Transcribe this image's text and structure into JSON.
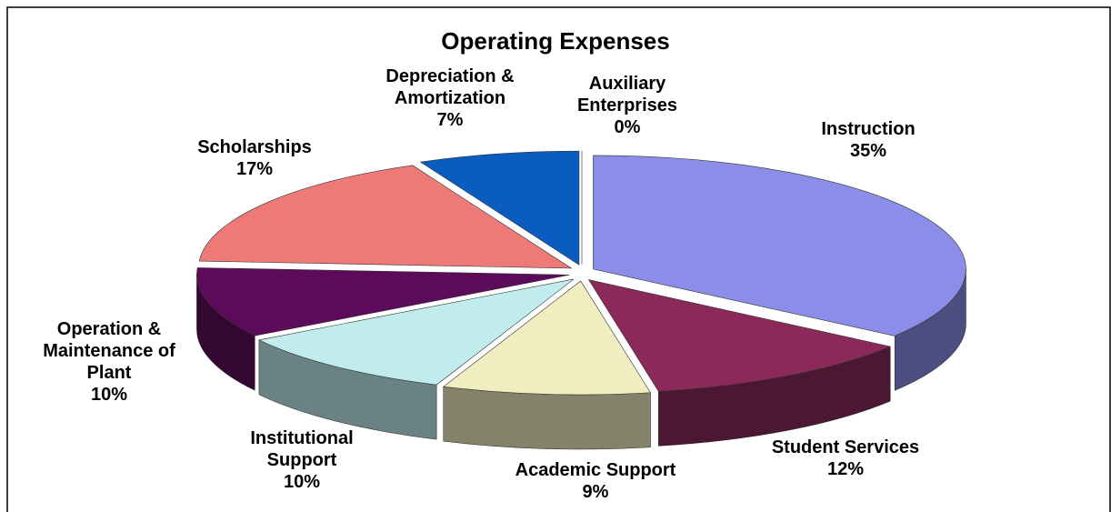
{
  "chart_data": {
    "type": "pie",
    "title": "Operating Expenses",
    "categories": [
      "Instruction",
      "Student Services",
      "Academic Support",
      "Institutional Support",
      "Operation & Maintenance of Plant",
      "Scholarships",
      "Depreciation & Amortization",
      "Auxiliary Enterprises"
    ],
    "values": [
      35,
      12,
      9,
      10,
      10,
      17,
      7,
      0
    ],
    "value_labels": [
      "35%",
      "12%",
      "9%",
      "10%",
      "10%",
      "17%",
      "7%",
      "0%"
    ],
    "colors": [
      "#8b8ee8",
      "#8b2a5a",
      "#f0eec0",
      "#c0ecee",
      "#5e0a5a",
      "#ee7a78",
      "#0a5cc0",
      "#c8c8f0"
    ]
  }
}
